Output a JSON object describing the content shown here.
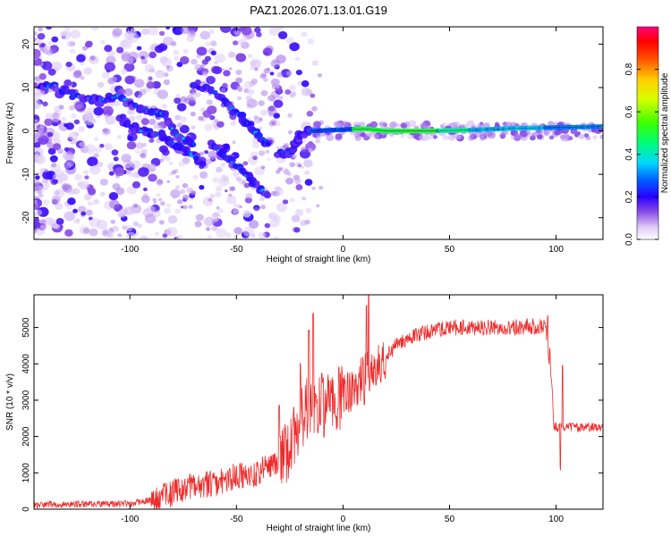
{
  "title": "PAZ1.2026.071.13.01.G19",
  "colors": {
    "snr_line": "#ee2b2b",
    "axis": "#000000"
  },
  "colorbar": {
    "label": "Normalized spectral amplitude",
    "ticks": [
      "0.0",
      "0.2",
      "0.4",
      "0.6",
      "0.8"
    ],
    "tick_values": [
      0.0,
      0.2,
      0.4,
      0.6,
      0.8
    ],
    "range": [
      0,
      1
    ]
  },
  "chart_data": [
    {
      "type": "heatmap",
      "xlabel": "Height of straight line (km)",
      "ylabel": "Frequency (Hz)",
      "xlim": [
        -145,
        122
      ],
      "ylim": [
        -25,
        24
      ],
      "xticks": [
        -100,
        -50,
        0,
        50,
        100
      ],
      "xtick_labels": [
        "-100",
        "-50",
        "0",
        "50",
        "100"
      ],
      "yticks": [
        -20,
        -10,
        0,
        10,
        20
      ],
      "ytick_labels": [
        "-20",
        "-10",
        "0",
        "10",
        "20"
      ],
      "ridge_tracks": [
        {
          "name": "scatter-upper",
          "points": [
            [
              -142,
              10
            ],
            [
              -135,
              10.5
            ],
            [
              -125,
              8
            ],
            [
              -115,
              7
            ],
            [
              -105,
              8
            ],
            [
              -95,
              5
            ],
            [
              -85,
              4
            ],
            [
              -78,
              -1
            ],
            [
              -70,
              -3
            ]
          ]
        },
        {
          "name": "descending-left",
          "points": [
            [
              -105,
              3
            ],
            [
              -95,
              0
            ],
            [
              -85,
              -1
            ],
            [
              -80,
              -3
            ],
            [
              -72,
              -5
            ],
            [
              -65,
              -8
            ]
          ]
        },
        {
          "name": "descending-mid",
          "points": [
            [
              -70,
              11
            ],
            [
              -60,
              9
            ],
            [
              -52,
              5
            ],
            [
              -45,
              2
            ],
            [
              -40,
              -1
            ],
            [
              -35,
              -3
            ]
          ]
        },
        {
          "name": "descending-low",
          "points": [
            [
              -62,
              -3
            ],
            [
              -55,
              -6
            ],
            [
              -48,
              -9
            ],
            [
              -42,
              -12
            ],
            [
              -35,
              -15
            ]
          ]
        },
        {
          "name": "tone-dip",
          "points": [
            [
              -30,
              -5
            ],
            [
              -25,
              -5
            ],
            [
              -22,
              -3
            ],
            [
              -20,
              -1
            ],
            [
              -15,
              0
            ]
          ]
        },
        {
          "name": "carrier",
          "points": [
            [
              -15,
              0
            ],
            [
              0,
              0.3
            ],
            [
              10,
              0.5
            ],
            [
              20,
              0
            ],
            [
              40,
              0
            ],
            [
              60,
              0.2
            ],
            [
              80,
              0.6
            ],
            [
              100,
              0.8
            ],
            [
              122,
              1
            ]
          ]
        }
      ]
    },
    {
      "type": "line",
      "xlabel": "Height of straight line (km)",
      "ylabel": "SNR (10 * v/v)",
      "xlim": [
        -145,
        122
      ],
      "ylim": [
        0,
        5900
      ],
      "xticks": [
        -100,
        -50,
        0,
        50,
        100
      ],
      "xtick_labels": [
        "-100",
        "-50",
        "0",
        "50",
        "100"
      ],
      "yticks": [
        0,
        1000,
        2000,
        3000,
        4000,
        5000
      ],
      "ytick_labels": [
        "0",
        "1000",
        "2000",
        "3000",
        "4000",
        "5000"
      ],
      "envelope": [
        [
          -145,
          120
        ],
        [
          -100,
          150
        ],
        [
          -90,
          250
        ],
        [
          -80,
          450
        ],
        [
          -70,
          650
        ],
        [
          -60,
          700
        ],
        [
          -50,
          900
        ],
        [
          -40,
          1000
        ],
        [
          -30,
          1300
        ],
        [
          -25,
          1600
        ],
        [
          -20,
          2400
        ],
        [
          -15,
          3000
        ],
        [
          -10,
          2800
        ],
        [
          0,
          3100
        ],
        [
          5,
          3300
        ],
        [
          10,
          3700
        ],
        [
          15,
          3900
        ],
        [
          20,
          4200
        ],
        [
          25,
          4500
        ],
        [
          30,
          4700
        ],
        [
          40,
          4900
        ],
        [
          50,
          5000
        ],
        [
          60,
          5000
        ],
        [
          80,
          5000
        ],
        [
          95,
          5050
        ],
        [
          98,
          3500
        ],
        [
          99,
          2300
        ],
        [
          101,
          2250
        ],
        [
          105,
          2250
        ],
        [
          122,
          2250
        ]
      ],
      "spikes": [
        [
          -30,
          2900
        ],
        [
          -20,
          4100
        ],
        [
          -16,
          5000
        ],
        [
          -14,
          5400
        ],
        [
          -10,
          3800
        ],
        [
          10,
          3000
        ],
        [
          11,
          5700
        ],
        [
          12,
          6000
        ],
        [
          96,
          5400
        ],
        [
          97,
          4500
        ],
        [
          102,
          1200
        ],
        [
          103,
          4000
        ]
      ]
    }
  ]
}
